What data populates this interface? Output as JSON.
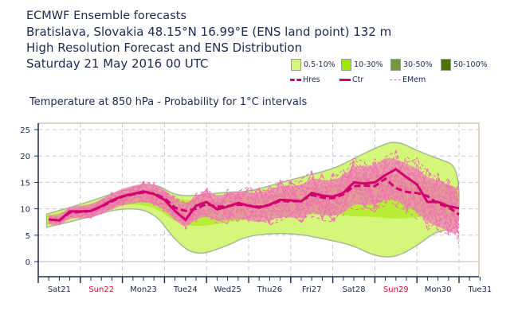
{
  "header": {
    "line1": "ECMWF Ensemble forecasts",
    "line2": "Bratislava, Slovakia 48.15°N 16.99°E (ENS land point) 132 m",
    "line3": "High Resolution Forecast and ENS Distribution",
    "line4": "Saturday 21 May 2016 00 UTC"
  },
  "legend": {
    "bands": [
      {
        "label": "0.5-10%",
        "color": "#d4f77a"
      },
      {
        "label": "10-30%",
        "color": "#a0e800"
      },
      {
        "label": "30-50%",
        "color": "#76983a"
      },
      {
        "label": "50-100%",
        "color": "#4c7200"
      }
    ],
    "lines": [
      {
        "label": "Hres",
        "color": "#d0006f",
        "style": "thick-dashed"
      },
      {
        "label": "Ctr",
        "color": "#d0006f",
        "style": "thick-solid"
      },
      {
        "label": "EMem",
        "color": "#f070b0",
        "style": "thin-dashed"
      }
    ]
  },
  "chart_data": {
    "type": "line",
    "title": "Temperature at 850 hPa - Probability for 1°C intervals",
    "xlabel": "",
    "ylabel": "",
    "ylim": [
      -3,
      26
    ],
    "yticks": [
      0,
      5,
      10,
      15,
      20,
      25
    ],
    "grid": true,
    "x_unit": "days since Sat21 00 UTC",
    "xlim": [
      0,
      10.5
    ],
    "xtick_labels": [
      {
        "label": "Sat21",
        "weekend": false
      },
      {
        "label": "Sun22",
        "weekend": true
      },
      {
        "label": "Mon23",
        "weekend": false
      },
      {
        "label": "Tue24",
        "weekend": false
      },
      {
        "label": "Wed25",
        "weekend": false
      },
      {
        "label": "Thu26",
        "weekend": false
      },
      {
        "label": "Fri27",
        "weekend": false
      },
      {
        "label": "Sat28",
        "weekend": false
      },
      {
        "label": "Sun29",
        "weekend": true
      },
      {
        "label": "Mon30",
        "weekend": false
      },
      {
        "label": "Tue31",
        "weekend": false
      }
    ],
    "series": [
      {
        "name": "Ctr",
        "x": [
          0.25,
          0.5,
          0.75,
          1.0,
          1.25,
          1.5,
          1.75,
          2.0,
          2.25,
          2.5,
          2.75,
          3.0,
          3.25,
          3.5,
          3.75,
          4.0,
          4.25,
          4.5,
          4.75,
          5.0,
          5.25,
          5.5,
          5.75,
          6.0,
          6.25,
          6.5,
          6.75,
          7.0,
          7.25,
          7.5,
          7.75,
          8.0,
          8.25,
          8.5,
          8.75,
          9.0,
          9.25,
          9.5,
          9.75,
          10.0
        ],
        "values": [
          8.0,
          7.8,
          9.5,
          9.5,
          9.6,
          10.5,
          11.6,
          12.4,
          12.8,
          13.3,
          12.8,
          11.7,
          9.6,
          7.9,
          10.6,
          11.3,
          9.9,
          10.4,
          11.1,
          10.6,
          10.2,
          10.8,
          11.7,
          11.6,
          11.4,
          13.0,
          12.5,
          12.3,
          13.0,
          15.0,
          14.8,
          15.0,
          16.4,
          17.5,
          16.0,
          14.6,
          11.3,
          11.3,
          10.5,
          10.1
        ]
      },
      {
        "name": "Hres",
        "x": [
          0.25,
          0.5,
          0.75,
          1.0,
          1.25,
          1.5,
          1.75,
          2.0,
          2.25,
          2.5,
          2.75,
          3.0,
          3.25,
          3.5,
          3.75,
          4.0,
          4.25,
          4.5,
          4.75,
          5.0,
          5.25,
          5.5,
          5.75,
          6.0,
          6.25,
          6.5,
          6.75,
          7.0,
          7.25,
          7.5,
          7.75,
          8.0,
          8.25,
          8.5,
          8.75,
          9.0,
          9.25,
          9.5,
          9.75,
          10.0
        ],
        "values": [
          8.0,
          7.8,
          9.3,
          9.4,
          9.6,
          10.4,
          11.4,
          12.3,
          12.7,
          13.1,
          12.9,
          12.0,
          10.2,
          9.6,
          10.0,
          10.9,
          10.4,
          10.5,
          10.8,
          10.6,
          10.4,
          10.7,
          11.5,
          11.4,
          11.5,
          12.6,
          12.1,
          12.0,
          12.7,
          14.3,
          14.4,
          14.3,
          15.7,
          13.9,
          13.2,
          13.0,
          12.4,
          11.0,
          10.3,
          8.9
        ]
      }
    ],
    "probability_bands": [
      {
        "name": "0.5-10%",
        "x": [
          0.2,
          1,
          2,
          2.75,
          3.25,
          3.75,
          4.5,
          5,
          6,
          7,
          7.5,
          8,
          8.5,
          9,
          9.5,
          10
        ],
        "low": [
          6.5,
          8,
          10.3,
          9.5,
          4,
          1,
          3,
          5,
          5.5,
          4,
          3,
          1,
          0.8,
          3,
          6,
          6
        ],
        "high": [
          9,
          10.8,
          13.5,
          15,
          12.5,
          12.5,
          13.2,
          13.2,
          15.5,
          17.5,
          19.5,
          21.5,
          23,
          21,
          19.5,
          18
        ]
      },
      {
        "name": "10-30%",
        "x": [
          0.2,
          1,
          2,
          2.75,
          3.25,
          3.75,
          4.5,
          5,
          6,
          7,
          7.5,
          8,
          8.5,
          9,
          9.5,
          10
        ],
        "low": [
          7,
          8.6,
          11,
          10.5,
          7.5,
          6.5,
          7.5,
          8,
          9,
          9,
          8.5,
          8.5,
          8,
          8.5,
          8.5,
          8.5
        ],
        "high": [
          8.6,
          10.3,
          12.8,
          13.8,
          11.8,
          11.6,
          12,
          12.2,
          13.3,
          14.5,
          15.5,
          16.5,
          16.5,
          15.5,
          14.5,
          14.5
        ]
      }
    ]
  }
}
